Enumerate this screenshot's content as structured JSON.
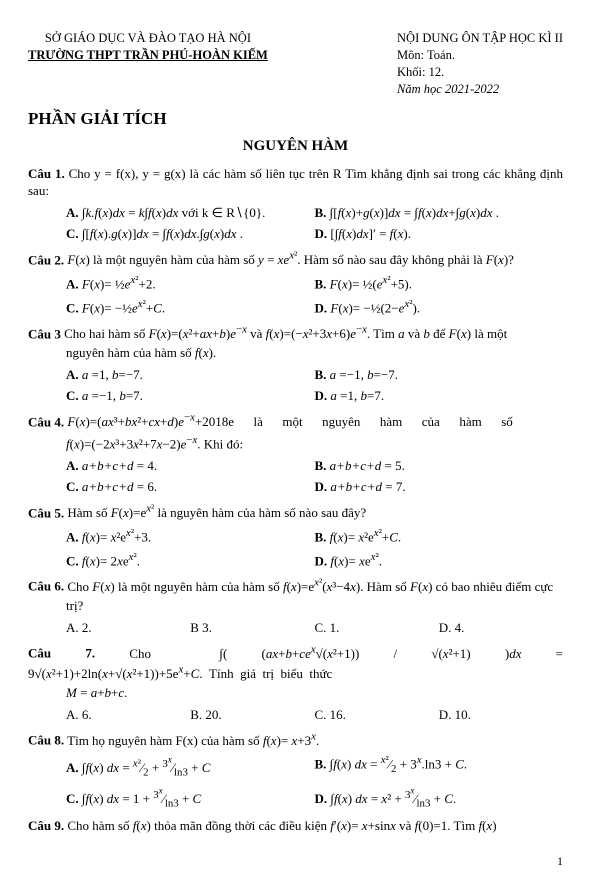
{
  "header": {
    "left_line1": "SỞ GIÁO DỤC VÀ ĐÀO TẠO HÀ NỘI",
    "left_line2": "TRƯỜNG THPT TRẦN PHÚ-HOÀN KIẾM",
    "right_line1": "NỘI DUNG ÔN TẬP HỌC KÌ II",
    "right_line2": "Môn: Toán.",
    "right_line3": "Khối: 12.",
    "right_line4": "Năm học  2021-2022"
  },
  "section_title": "PHẦN GIẢI TÍCH",
  "chapter_title": "NGUYÊN HÀM",
  "c1": {
    "label": "Câu 1.",
    "text": " Cho  y = f(x), y = g(x)  là các hàm số liên tục trên R Tìm khẳng định sai trong các khẳng định sau:",
    "A": "A.   ∫k.f(x)dx = k∫f(x)dx với k ∈ R∖{0}.",
    "B": "B. ∫[f(x)+g(x)]dx = ∫f(x)dx + ∫g(x)dx .",
    "C": "C. ∫[f(x).g(x)]dx = ∫f(x)dx.∫g(x)dx .",
    "D": "D. [∫f(x)dx]′ = f(x)."
  },
  "c2": {
    "label": "Câu 2.",
    "text": " F(x) là một nguyên hàm của hàm số  y = xe^{x²}. Hàm số nào sau đây không phải là F(x)?",
    "A": "A. F(x)= (1/2)e^{x²} + 2.",
    "B": "B. F(x)= (1/2)(e^{x²}+5).",
    "C": "C. F(x)= −(1/2)e^{x²}+C.",
    "D": "D. F(x)= −(1/2)(2−e^{x²})."
  },
  "c3": {
    "label": "Câu 3",
    "text": " Cho hai hàm số F(x)=(x²+ax+b)e^{−x} và f(x)=(−x²+3x+6)e^{−x}. Tìm a và b để F(x) là một nguyên hàm của hàm số f(x).",
    "A": "A.  a = 1, b = −7.",
    "B": "B.  a = −1, b = −7.",
    "C": "C.  a = −1, b = 7.",
    "D": "D.  a = 1, b = 7."
  },
  "c4": {
    "label": "Câu 4.",
    "text1": " F(x)=(ax³+bx²+cx+d)e^{−x}+2018e        là        một        nguyên        hàm        của        hàm        số",
    "text2": "f(x)=(−2x³+3x²+7x−2)e^{−x}. Khi đó:",
    "A": "A.  a+b+c+d = 4.",
    "B": "B.  a+b+c+d = 5.",
    "C": "C.  a+b+c+d = 6.",
    "D": "D.  a+b+c+d = 7."
  },
  "c5": {
    "label": "Câu 5.",
    "text": " Hàm số F(x)=e^{x²} là nguyên hàm của hàm số nào sau đây?",
    "A": "A. f(x)= x²e^{x²}+3.",
    "B": "B. f(x)= x²e^{x²}+C.",
    "C": "C. f(x)= 2xe^{x²}.",
    "D": "D. f(x)= xe^{x²}."
  },
  "c6": {
    "label": "Câu 6.",
    "text": " Cho F(x) là một nguyên hàm của hàm số f(x)=e^{x²}(x³−4x). Hàm số F(x) có bao nhiêu điểm cực trị?",
    "A": "A. 2.",
    "B": "B 3.",
    "C": "C. 1.",
    "D": "D. 4."
  },
  "c7": {
    "label": "Câu 7.",
    "text": " Cho   ∫( (ax+b+ce^{x}√(x²+1)) / √(x²+1) )dx = 9√(x²+1) + 2ln(x+√(x²+1)) + 5e^{x}+C.   Tính   giá   trị   biểu   thức",
    "text2": "M = a+b+c.",
    "A": "A. 6.",
    "B": "B. 20.",
    "C": "C. 16.",
    "D": "D. 10."
  },
  "c8": {
    "label": "Câu 8.",
    "text": " Tìm họ nguyên hàm F(x) của hàm số  f(x)= x+3^{x}.",
    "A": "A. ∫f(x) dx = x²/2 + 3^{x}/ln3 + C",
    "B": "B. ∫f(x) dx = x²/2 + 3^{x}.ln3 + C.",
    "C": "C. ∫f(x) dx = 1 + 3^{x}/ln3 + C",
    "D": "D. ∫f(x) dx = x² + 3^{x}/ln3 + C."
  },
  "c9": {
    "label": "Câu 9.",
    "text": " Cho hàm số f(x) thỏa mãn đồng thời các điều kiện  f′(x)= x+sin x và  f(0)=1. Tìm  f(x)"
  },
  "page_number": "1"
}
